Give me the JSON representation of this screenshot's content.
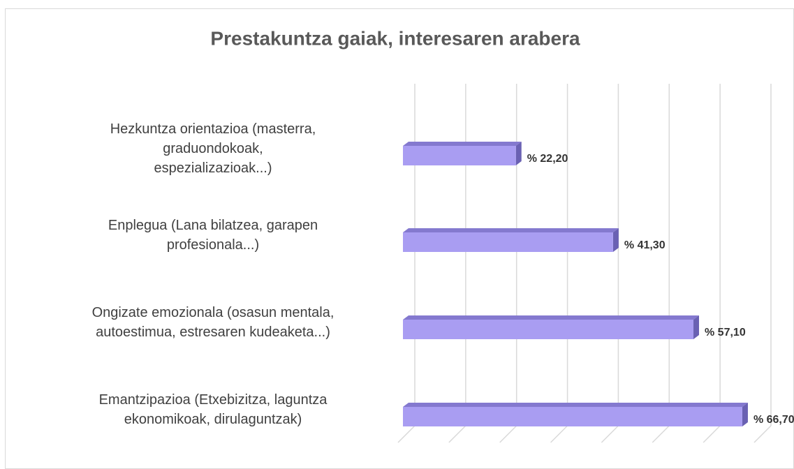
{
  "chart_data": {
    "type": "bar3d_horizontal",
    "title": "Prestakuntza gaiak, interesaren arabera",
    "categories": [
      "Hezkuntza orientazioa (masterra,\ngraduondokoak,\nespezializazioak...)",
      "Enplegua (Lana bilatzea, garapen\nprofesionala...)",
      "Ongizate emozionala (osasun mentala,\nautoestimua, estresaren kudeaketa...)",
      "Emantzipazioa (Etxebizitza, laguntza\nekonomikoak, dirulaguntzak)"
    ],
    "values": [
      22.2,
      41.3,
      57.1,
      66.7
    ],
    "value_labels": [
      "% 22,20",
      "% 41,30",
      "% 57,10",
      "% 66,70"
    ],
    "color": "#a99df2",
    "xlim": [
      0,
      70
    ],
    "xticks": [
      0,
      10,
      20,
      30,
      40,
      50,
      60,
      70
    ],
    "grid": true
  }
}
